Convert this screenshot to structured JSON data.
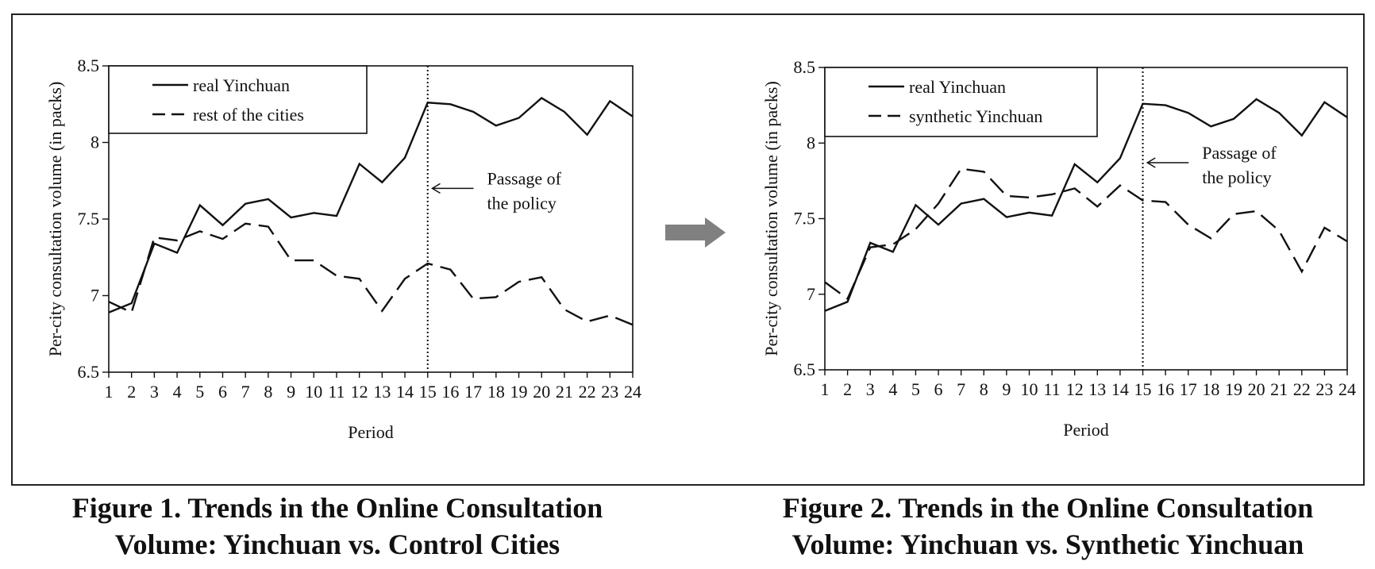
{
  "figure_1": {
    "caption_line1": "Figure 1.  Trends in the Online Consultation",
    "caption_line2": "Volume: Yinchuan vs. Control Cities"
  },
  "figure_2": {
    "caption_line1": "Figure 2.  Trends in the Online Consultation",
    "caption_line2": "Volume: Yinchuan vs. Synthetic Yinchuan"
  },
  "arrow_color": "#808080",
  "chart_data": [
    {
      "type": "line",
      "title": "",
      "xlabel": "Period",
      "ylabel": "Per-city consultation volume (in packs)",
      "x": [
        1,
        2,
        3,
        4,
        5,
        6,
        7,
        8,
        9,
        10,
        11,
        12,
        13,
        14,
        15,
        16,
        17,
        18,
        19,
        20,
        21,
        22,
        23,
        24
      ],
      "ylim": [
        6.5,
        8.5
      ],
      "yticks": [
        "6.5",
        "7",
        "7.5",
        "8",
        "8.5"
      ],
      "ytick_values": [
        6.5,
        7,
        7.5,
        8,
        8.5
      ],
      "legend_position": "top-left",
      "series": [
        {
          "name": "real Yinchuan",
          "style": "solid",
          "values": [
            6.89,
            6.95,
            7.34,
            7.28,
            7.59,
            7.46,
            7.6,
            7.63,
            7.51,
            7.54,
            7.52,
            7.86,
            7.74,
            7.9,
            8.26,
            8.25,
            8.2,
            8.11,
            8.16,
            8.29,
            8.2,
            8.05,
            8.27,
            8.17
          ]
        },
        {
          "name": "rest of the cities",
          "style": "dashed",
          "values": [
            6.96,
            6.89,
            7.38,
            7.36,
            7.42,
            7.37,
            7.47,
            7.45,
            7.23,
            7.23,
            7.13,
            7.11,
            6.9,
            7.11,
            7.21,
            7.17,
            6.98,
            6.99,
            7.09,
            7.12,
            6.91,
            6.83,
            6.87,
            6.81
          ]
        }
      ],
      "vline_x": 15,
      "annotation": {
        "line1": "Passage of",
        "line2": "the policy",
        "x": 15.2,
        "y": 7.7
      }
    },
    {
      "type": "line",
      "title": "",
      "xlabel": "Period",
      "ylabel": "Per-city consultation volume (in packs)",
      "x": [
        1,
        2,
        3,
        4,
        5,
        6,
        7,
        8,
        9,
        10,
        11,
        12,
        13,
        14,
        15,
        16,
        17,
        18,
        19,
        20,
        21,
        22,
        23,
        24
      ],
      "ylim": [
        6.5,
        8.5
      ],
      "yticks": [
        "6.5",
        "7",
        "7.5",
        "8",
        "8.5"
      ],
      "ytick_values": [
        6.5,
        7,
        7.5,
        8,
        8.5
      ],
      "legend_position": "top-left",
      "series": [
        {
          "name": "real Yinchuan",
          "style": "solid",
          "values": [
            6.89,
            6.95,
            7.34,
            7.28,
            7.59,
            7.46,
            7.6,
            7.63,
            7.51,
            7.54,
            7.52,
            7.86,
            7.74,
            7.9,
            8.26,
            8.25,
            8.2,
            8.11,
            8.16,
            8.29,
            8.2,
            8.05,
            8.27,
            8.17
          ]
        },
        {
          "name": "synthetic Yinchuan",
          "style": "dashed",
          "values": [
            7.08,
            6.97,
            7.31,
            7.33,
            7.43,
            7.6,
            7.83,
            7.81,
            7.65,
            7.64,
            7.66,
            7.7,
            7.58,
            7.72,
            7.62,
            7.61,
            7.46,
            7.37,
            7.53,
            7.55,
            7.42,
            7.15,
            7.44,
            7.35
          ]
        }
      ],
      "vline_x": 15,
      "annotation": {
        "line1": "Passage of",
        "line2": "the policy",
        "x": 15.2,
        "y": 7.87
      }
    }
  ]
}
